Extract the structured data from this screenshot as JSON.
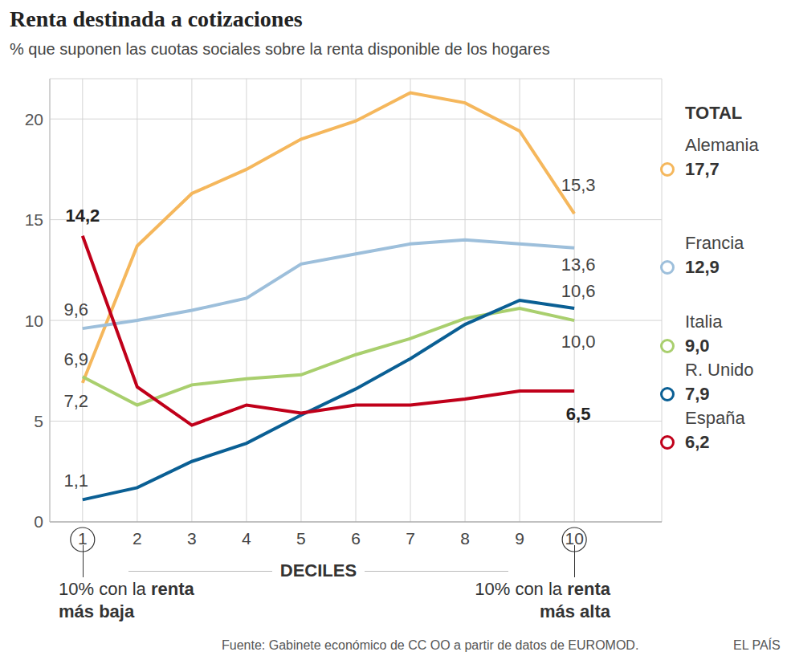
{
  "chart_data": {
    "type": "line",
    "title": "Renta destinada a cotizaciones",
    "subtitle": "% que suponen las cuotas sociales sobre la renta disponible de los hogares",
    "x_label": "DECILES",
    "x": [
      1,
      2,
      3,
      4,
      5,
      6,
      7,
      8,
      9,
      10
    ],
    "xlim": [
      0.4,
      11.6
    ],
    "xticks": [
      1,
      2,
      3,
      4,
      5,
      6,
      7,
      8,
      9,
      10
    ],
    "ylim": [
      0,
      22
    ],
    "yticks": [
      0,
      5,
      10,
      15,
      20
    ],
    "grid": true,
    "legend_title": "TOTAL",
    "series": [
      {
        "name": "Alemania",
        "color": "#f5b75c",
        "values": [
          6.9,
          13.7,
          16.3,
          17.5,
          19.0,
          19.9,
          21.3,
          20.8,
          19.4,
          15.3
        ],
        "value_labels": [
          "6,9",
          null,
          null,
          null,
          null,
          null,
          null,
          null,
          null,
          "15,3"
        ],
        "total": 17.7,
        "total_label": "17,7"
      },
      {
        "name": "Francia",
        "color": "#9dbfdb",
        "values": [
          9.6,
          10.0,
          10.5,
          11.1,
          12.8,
          13.3,
          13.8,
          14.0,
          13.8,
          13.6
        ],
        "value_labels": [
          "9,6",
          null,
          null,
          null,
          null,
          null,
          null,
          null,
          null,
          "13,6"
        ],
        "total": 12.9,
        "total_label": "12,9"
      },
      {
        "name": "Italia",
        "color": "#a9cf6e",
        "values": [
          7.2,
          5.8,
          6.8,
          7.1,
          7.3,
          8.3,
          9.1,
          10.1,
          10.6,
          10.0
        ],
        "value_labels": [
          "7,2",
          null,
          null,
          null,
          null,
          null,
          null,
          null,
          null,
          "10,0"
        ],
        "total": 9.0,
        "total_label": "9,0"
      },
      {
        "name": "R. Unido",
        "color": "#0a5f94",
        "values": [
          1.1,
          1.7,
          3.0,
          3.9,
          5.3,
          6.6,
          8.1,
          9.8,
          11.0,
          10.6
        ],
        "value_labels": [
          "1,1",
          null,
          null,
          null,
          null,
          null,
          null,
          null,
          null,
          "10,6"
        ],
        "total": 7.9,
        "total_label": "7,9"
      },
      {
        "name": "España",
        "color": "#c0001a",
        "values": [
          14.2,
          6.7,
          4.8,
          5.8,
          5.4,
          5.8,
          5.8,
          6.1,
          6.5,
          6.5
        ],
        "value_labels": [
          "14,2",
          null,
          null,
          null,
          null,
          null,
          null,
          null,
          null,
          "6,5"
        ],
        "total": 6.2,
        "total_label": "6,2"
      }
    ],
    "notes": [
      {
        "text": "10% con la renta más baja",
        "bold": "renta más baja"
      },
      {
        "text": "10% con la renta más alta",
        "bold": "renta más alta"
      }
    ],
    "source": "Fuente: Gabinete económico de CC OO a partir de datos de EUROMOD.",
    "credit": "EL PAÍS"
  }
}
